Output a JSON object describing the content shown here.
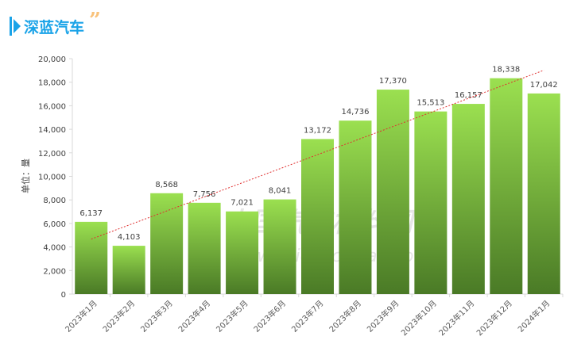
{
  "header": {
    "title": "深蓝汽车",
    "quote_mark": "”"
  },
  "chart_data": {
    "type": "bar",
    "title": "深蓝汽车",
    "ylabel": "单位：量",
    "xlabel": "",
    "ylim": [
      0,
      20000
    ],
    "yticks": [
      "0",
      "2,000",
      "4,000",
      "6,000",
      "8,000",
      "10,000",
      "12,000",
      "14,000",
      "16,000",
      "18,000",
      "20,000"
    ],
    "categories": [
      "2023年1月",
      "2023年2月",
      "2023年3月",
      "2023年4月",
      "2023年5月",
      "2023年6月",
      "2023年7月",
      "2023年8月",
      "2023年9月",
      "2023年10月",
      "2023年11月",
      "2023年12月",
      "2024年1月"
    ],
    "values": [
      6137,
      4103,
      8568,
      7756,
      7021,
      8041,
      13172,
      14736,
      17370,
      15513,
      16157,
      18338,
      17042
    ],
    "labels": [
      "6,137",
      "4,103",
      "8,568",
      "7,756",
      "7,021",
      "8,041",
      "13,172",
      "14,736",
      "17,370",
      "15,513",
      "16,157",
      "18,338",
      "17,042"
    ],
    "trendline": "linear",
    "colors": {
      "bar_top": "#9be050",
      "bar_bottom": "#4a7a26",
      "trend": "#e03030"
    },
    "watermark": "中国汽车材料网 www.qichecailiao.com"
  }
}
